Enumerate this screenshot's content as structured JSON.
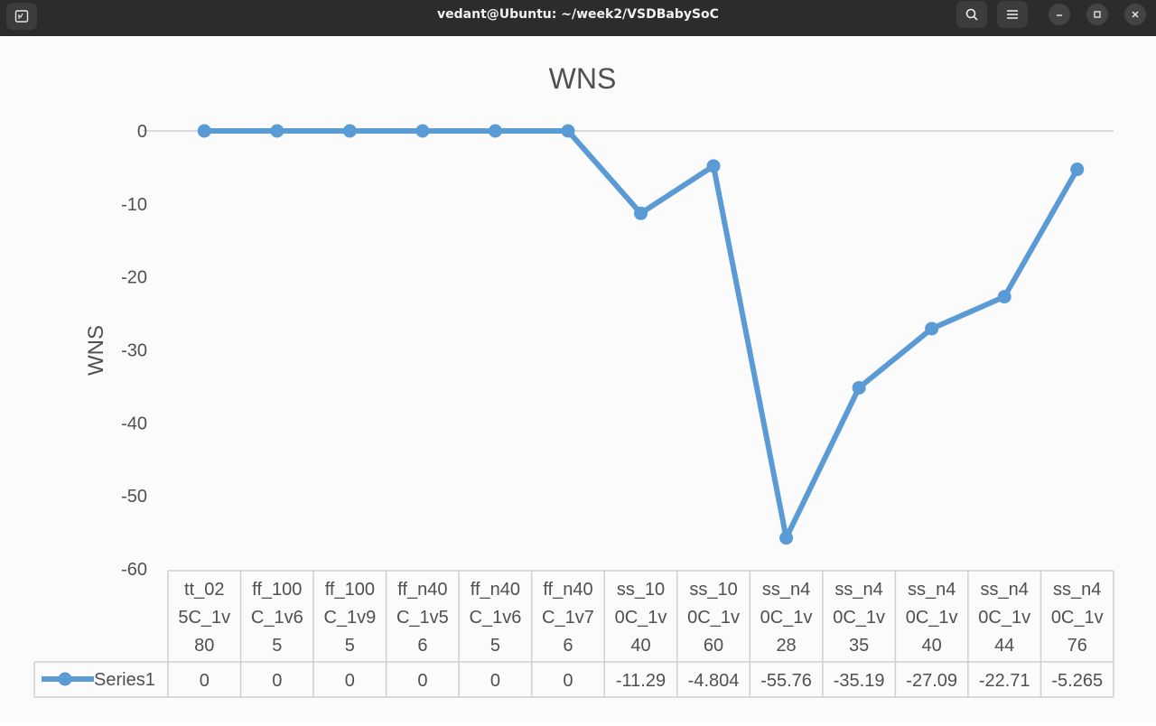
{
  "window": {
    "title": "vedant@Ubuntu: ~/week2/VSDBabySoC",
    "icons": [
      "terminal-icon",
      "search-icon",
      "menu-icon",
      "minimize-icon",
      "maximize-icon",
      "close-icon"
    ]
  },
  "chart_data": {
    "type": "line",
    "title": "WNS",
    "ylabel": "WNS",
    "xlabel": "",
    "ylim": [
      -60,
      0
    ],
    "yticks": [
      0,
      -10,
      -20,
      -30,
      -40,
      -50,
      -60
    ],
    "grid": false,
    "legend": "data-table",
    "categories": [
      [
        "tt_02",
        "5C_1v",
        "80"
      ],
      [
        "ff_100",
        "C_1v6",
        "5"
      ],
      [
        "ff_100",
        "C_1v9",
        "5"
      ],
      [
        "ff_n40",
        "C_1v5",
        "6"
      ],
      [
        "ff_n40",
        "C_1v6",
        "5"
      ],
      [
        "ff_n40",
        "C_1v7",
        "6"
      ],
      [
        "ss_10",
        "0C_1v",
        "40"
      ],
      [
        "ss_10",
        "0C_1v",
        "60"
      ],
      [
        "ss_n4",
        "0C_1v",
        "28"
      ],
      [
        "ss_n4",
        "0C_1v",
        "35"
      ],
      [
        "ss_n4",
        "0C_1v",
        "40"
      ],
      [
        "ss_n4",
        "0C_1v",
        "44"
      ],
      [
        "ss_n4",
        "0C_1v",
        "76"
      ]
    ],
    "series": [
      {
        "name": "Series1",
        "values": [
          0,
          0,
          0,
          0,
          0,
          0,
          -11.29,
          -4.804,
          -55.76,
          -35.19,
          -27.09,
          -22.71,
          -5.265
        ],
        "labels": [
          "0",
          "0",
          "0",
          "0",
          "0",
          "0",
          "-11.29",
          "-4.804",
          "-55.76",
          "-35.19",
          "-27.09",
          "-22.71",
          "-5.265"
        ],
        "color": "#5b9bd5"
      }
    ]
  }
}
